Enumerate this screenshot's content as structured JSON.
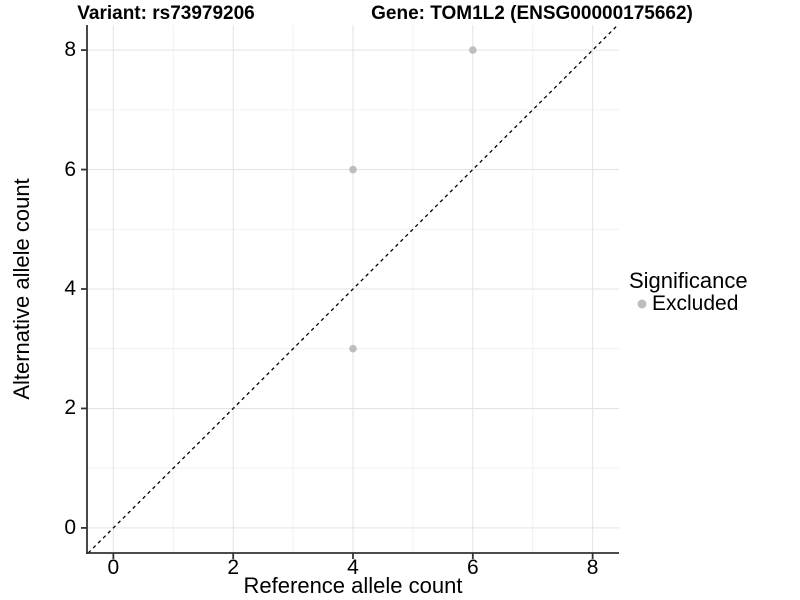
{
  "chart_data": {
    "type": "scatter",
    "title_left": "Variant: rs73979206",
    "title_right": "Gene: TOM1L2 (ENSG00000175662)",
    "xlabel": "Reference allele count",
    "ylabel": "Alternative allele count",
    "xlim": [
      -0.44,
      8.44
    ],
    "ylim": [
      -0.42,
      8.42
    ],
    "x_ticks": [
      0,
      2,
      4,
      6,
      8
    ],
    "y_ticks": [
      0,
      2,
      4,
      6,
      8
    ],
    "x_minor_ticks": [
      1,
      3,
      5,
      7
    ],
    "y_minor_ticks": [
      1,
      3,
      5,
      7
    ],
    "grid": "major-and-minor",
    "points": [
      {
        "x": 4,
        "y": 3,
        "significance": "Excluded"
      },
      {
        "x": 4,
        "y": 6,
        "significance": "Excluded"
      },
      {
        "x": 6,
        "y": 8,
        "significance": "Excluded"
      }
    ],
    "identity_line": {
      "equation": "y = x",
      "style": "dashed",
      "color": "#000000"
    },
    "legend": {
      "title": "Significance",
      "position": "right",
      "items": [
        {
          "label": "Excluded",
          "color": "#bdbdbd"
        }
      ]
    },
    "colors": {
      "point": "#bdbdbd",
      "grid_major": "#e3e3e3",
      "grid_minor": "#f1f1f1",
      "axis": "#333333",
      "text": "#000000",
      "background": "#ffffff"
    }
  }
}
